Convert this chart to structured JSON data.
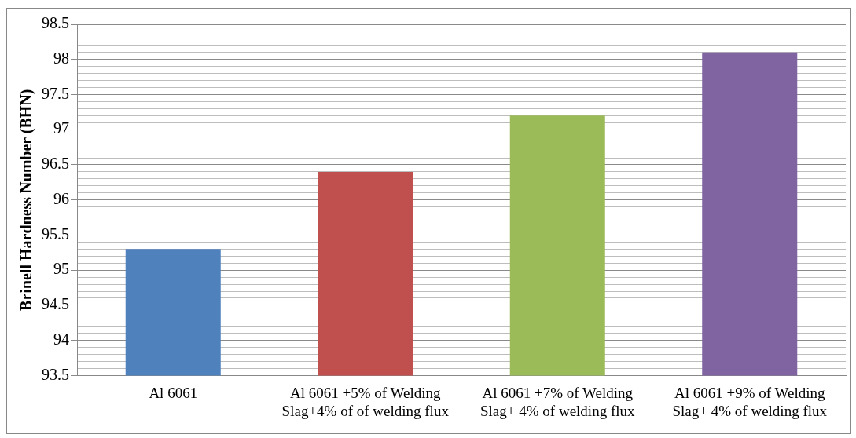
{
  "chart_data": {
    "type": "bar",
    "ylabel": "Brinell Hardness Number (BHN)",
    "categories": [
      "Al 6061",
      "Al 6061 +5% of Welding Slag+4% of of welding flux",
      "Al 6061 +7% of Welding Slag+ 4% of welding flux",
      "Al 6061 +9% of Welding Slag+ 4% of welding flux"
    ],
    "values": [
      95.3,
      96.4,
      97.2,
      98.1
    ],
    "colors": [
      "#4f81bd",
      "#c0504d",
      "#9bbb59",
      "#8064a2"
    ],
    "ylim": [
      93.5,
      98.5
    ],
    "yticks": [
      93.5,
      {
        "value": 93.6,
        "label": null
      },
      {
        "value": 93.7,
        "label": null
      },
      {
        "value": 93.8,
        "label": null
      },
      {
        "value": 93.9,
        "label": null
      },
      94,
      {
        "value": 94.1,
        "label": null
      },
      {
        "value": 94.2,
        "label": null
      },
      {
        "value": 94.3,
        "label": null
      },
      {
        "value": 94.4,
        "label": null
      },
      94.5,
      {
        "value": 94.6,
        "label": null
      },
      {
        "value": 94.7,
        "label": null
      },
      {
        "value": 94.8,
        "label": null
      },
      {
        "value": 94.9,
        "label": null
      },
      95,
      {
        "value": 95.1,
        "label": null
      },
      {
        "value": 95.2,
        "label": null
      },
      {
        "value": 95.3,
        "label": null
      },
      {
        "value": 95.4,
        "label": null
      },
      95.5,
      {
        "value": 95.6,
        "label": null
      },
      {
        "value": 95.7,
        "label": null
      },
      {
        "value": 95.8,
        "label": null
      },
      {
        "value": 95.9,
        "label": null
      },
      96,
      {
        "value": 96.1,
        "label": null
      },
      {
        "value": 96.2,
        "label": null
      },
      {
        "value": 96.3,
        "label": null
      },
      {
        "value": 96.4,
        "label": null
      },
      96.5,
      {
        "value": 96.6,
        "label": null
      },
      {
        "value": 96.7,
        "label": null
      },
      {
        "value": 96.8,
        "label": null
      },
      {
        "value": 96.9,
        "label": null
      },
      97,
      {
        "value": 97.1,
        "label": null
      },
      {
        "value": 97.2,
        "label": null
      },
      {
        "value": 97.3,
        "label": null
      },
      {
        "value": 97.4,
        "label": null
      },
      97.5,
      {
        "value": 97.6,
        "label": null
      },
      {
        "value": 97.7,
        "label": null
      },
      {
        "value": 97.8,
        "label": null
      },
      {
        "value": 97.9,
        "label": null
      },
      98,
      {
        "value": 98.1,
        "label": null
      },
      {
        "value": 98.2,
        "label": null
      },
      {
        "value": 98.3,
        "label": null
      },
      {
        "value": 98.4,
        "label": null
      },
      98.5
    ],
    "grid": "y",
    "legend": false
  }
}
